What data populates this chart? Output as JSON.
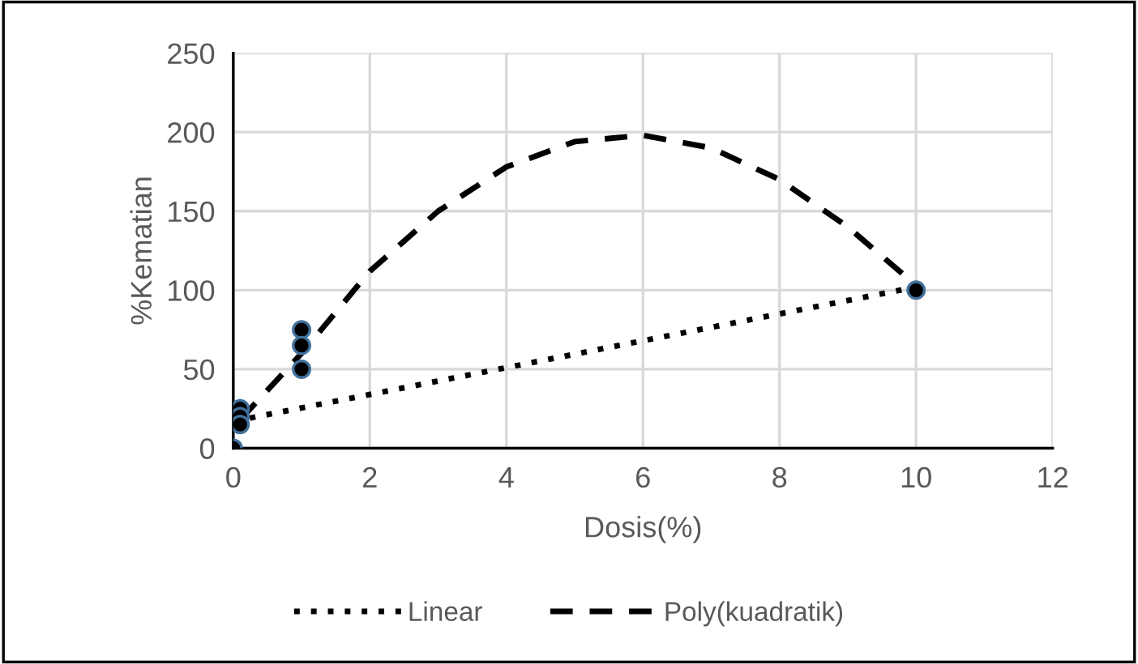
{
  "chart_data": {
    "type": "scatter",
    "xlabel": "Dosis(%)",
    "ylabel": "%Kematian",
    "xlim": [
      0,
      12
    ],
    "xticks": [
      0,
      2,
      4,
      6,
      8,
      10,
      12
    ],
    "ylim": [
      0,
      250
    ],
    "yticks": [
      0,
      50,
      100,
      150,
      200,
      250
    ],
    "grid": true,
    "legend": "bottom",
    "series": [
      {
        "color": "#000000",
        "marker": "circle",
        "x": [
          0,
          0.1,
          0.1,
          0.1,
          1,
          1,
          1,
          10
        ],
        "values": [
          0,
          25,
          20,
          15,
          75,
          65,
          50,
          100
        ]
      },
      {
        "type": "line",
        "name": "Linear",
        "color": "#000000",
        "line_style": "dotted",
        "x": [
          0,
          10
        ],
        "values": [
          17,
          102
        ]
      },
      {
        "type": "line",
        "name": "Poly(kuadratik)",
        "color": "#000000",
        "line_style": "dashed",
        "x": [
          0.1,
          1,
          2,
          3,
          4,
          5,
          6,
          7,
          8,
          9,
          10
        ],
        "values": [
          18,
          60,
          112,
          150,
          178,
          194,
          198,
          190,
          170,
          140,
          103
        ]
      }
    ]
  }
}
